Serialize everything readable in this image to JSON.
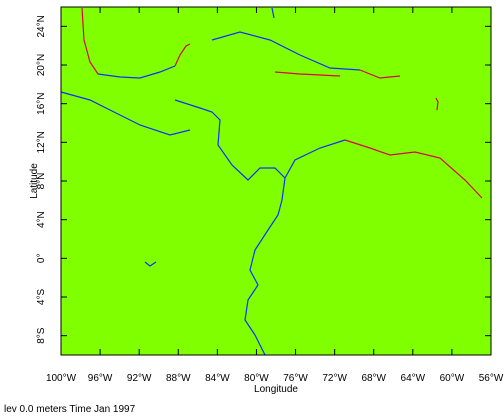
{
  "chart_data": {
    "type": "map",
    "xlabel": "Longitude",
    "ylabel": "Latitude",
    "footer": "lev 0.0 meters Time Jan 1997",
    "background": "#80ff00",
    "xlim": [
      -100,
      -56
    ],
    "ylim": [
      -10,
      26
    ],
    "xticks": [
      {
        "value": -100,
        "label": "100°W"
      },
      {
        "value": -96,
        "label": "96°W"
      },
      {
        "value": -92,
        "label": "92°W"
      },
      {
        "value": -88,
        "label": "88°W"
      },
      {
        "value": -84,
        "label": "84°W"
      },
      {
        "value": -80,
        "label": "80°W"
      },
      {
        "value": -76,
        "label": "76°W"
      },
      {
        "value": -72,
        "label": "72°W"
      },
      {
        "value": -68,
        "label": "68°W"
      },
      {
        "value": -64,
        "label": "64°W"
      },
      {
        "value": -60,
        "label": "60°W"
      },
      {
        "value": -56,
        "label": "56°W"
      }
    ],
    "yticks": [
      {
        "value": -8,
        "label": "8°S"
      },
      {
        "value": -4,
        "label": "4°S"
      },
      {
        "value": 0,
        "label": "0°"
      },
      {
        "value": 4,
        "label": "4°N"
      },
      {
        "value": 8,
        "label": "8°N"
      },
      {
        "value": 12,
        "label": "12°N"
      },
      {
        "value": 16,
        "label": "16°N"
      },
      {
        "value": 20,
        "label": "20°N"
      },
      {
        "value": 24,
        "label": "24°N"
      }
    ]
  }
}
